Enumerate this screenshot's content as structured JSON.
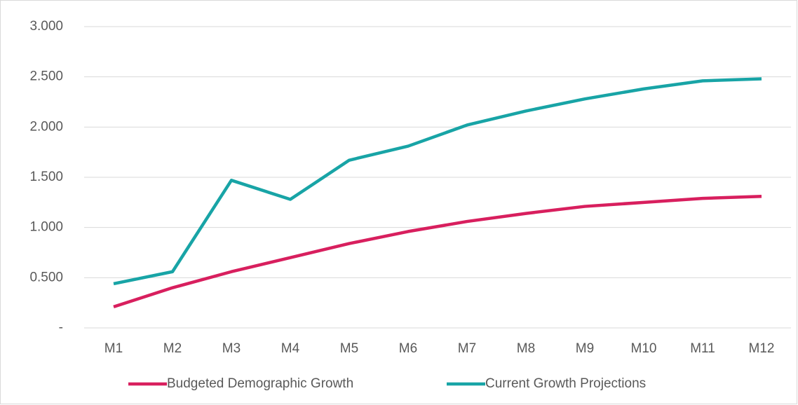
{
  "chart_data": {
    "type": "line",
    "categories": [
      "M1",
      "M2",
      "M3",
      "M4",
      "M5",
      "M6",
      "M7",
      "M8",
      "M9",
      "M10",
      "M11",
      "M12"
    ],
    "series": [
      {
        "name": "Budgeted Demographic Growth",
        "color": "#d81f5e",
        "values": [
          0.21,
          0.4,
          0.56,
          0.7,
          0.84,
          0.96,
          1.06,
          1.14,
          1.21,
          1.25,
          1.29,
          1.31
        ]
      },
      {
        "name": "Current Growth Projections",
        "color": "#18a4a6",
        "values": [
          0.44,
          0.56,
          1.47,
          1.28,
          1.67,
          1.81,
          2.02,
          2.16,
          2.28,
          2.38,
          2.46,
          2.48
        ]
      }
    ],
    "ylim": [
      0,
      3
    ],
    "yticks": [
      {
        "value": 0,
        "label": "-"
      },
      {
        "value": 0.5,
        "label": "0.500"
      },
      {
        "value": 1,
        "label": "1.000"
      },
      {
        "value": 1.5,
        "label": "1.500"
      },
      {
        "value": 2,
        "label": "2.000"
      },
      {
        "value": 2.5,
        "label": "2.500"
      },
      {
        "value": 3,
        "label": "3.000"
      }
    ],
    "grid": true,
    "legend": "bottom"
  }
}
